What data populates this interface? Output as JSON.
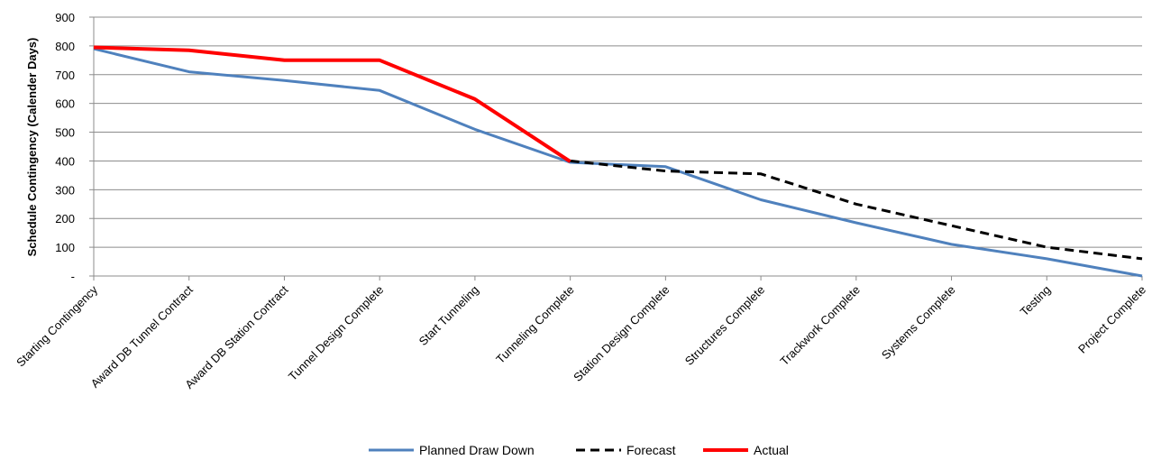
{
  "chart_data": {
    "type": "line",
    "title": "",
    "xlabel": "",
    "ylabel": "Schedule Contingency  (Calender Days)",
    "ylim": [
      0,
      900
    ],
    "yticks": [
      {
        "value": 0,
        "label": "-"
      },
      {
        "value": 100,
        "label": "100"
      },
      {
        "value": 200,
        "label": "200"
      },
      {
        "value": 300,
        "label": "300"
      },
      {
        "value": 400,
        "label": "400"
      },
      {
        "value": 500,
        "label": "500"
      },
      {
        "value": 600,
        "label": "600"
      },
      {
        "value": 700,
        "label": "700"
      },
      {
        "value": 800,
        "label": "800"
      },
      {
        "value": 900,
        "label": "900"
      }
    ],
    "grid": true,
    "legend_position": "bottom",
    "categories": [
      "Starting Contingency",
      "Award DB Tunnel Contract",
      "Award DB Station Contract",
      "Tunnel Design Complete",
      "Start Tunneling",
      "Tunneling Complete",
      "Station Design Complete",
      "Structures Complete",
      "Trackwork Complete",
      "Systems Complete",
      "Testing",
      "Project Complete"
    ],
    "series": [
      {
        "name": "Planned Draw Down",
        "color": "#4f81bd",
        "dash": "solid",
        "values": [
          790,
          710,
          680,
          645,
          510,
          395,
          380,
          265,
          185,
          110,
          60,
          0
        ]
      },
      {
        "name": "Forecast",
        "color": "#000000",
        "dash": "dashed",
        "values": [
          null,
          null,
          null,
          null,
          null,
          400,
          365,
          355,
          250,
          175,
          100,
          60
        ]
      },
      {
        "name": "Actual",
        "color": "#ff0000",
        "dash": "solid",
        "values": [
          795,
          785,
          750,
          750,
          615,
          398,
          null,
          null,
          null,
          null,
          null,
          null
        ]
      }
    ]
  }
}
